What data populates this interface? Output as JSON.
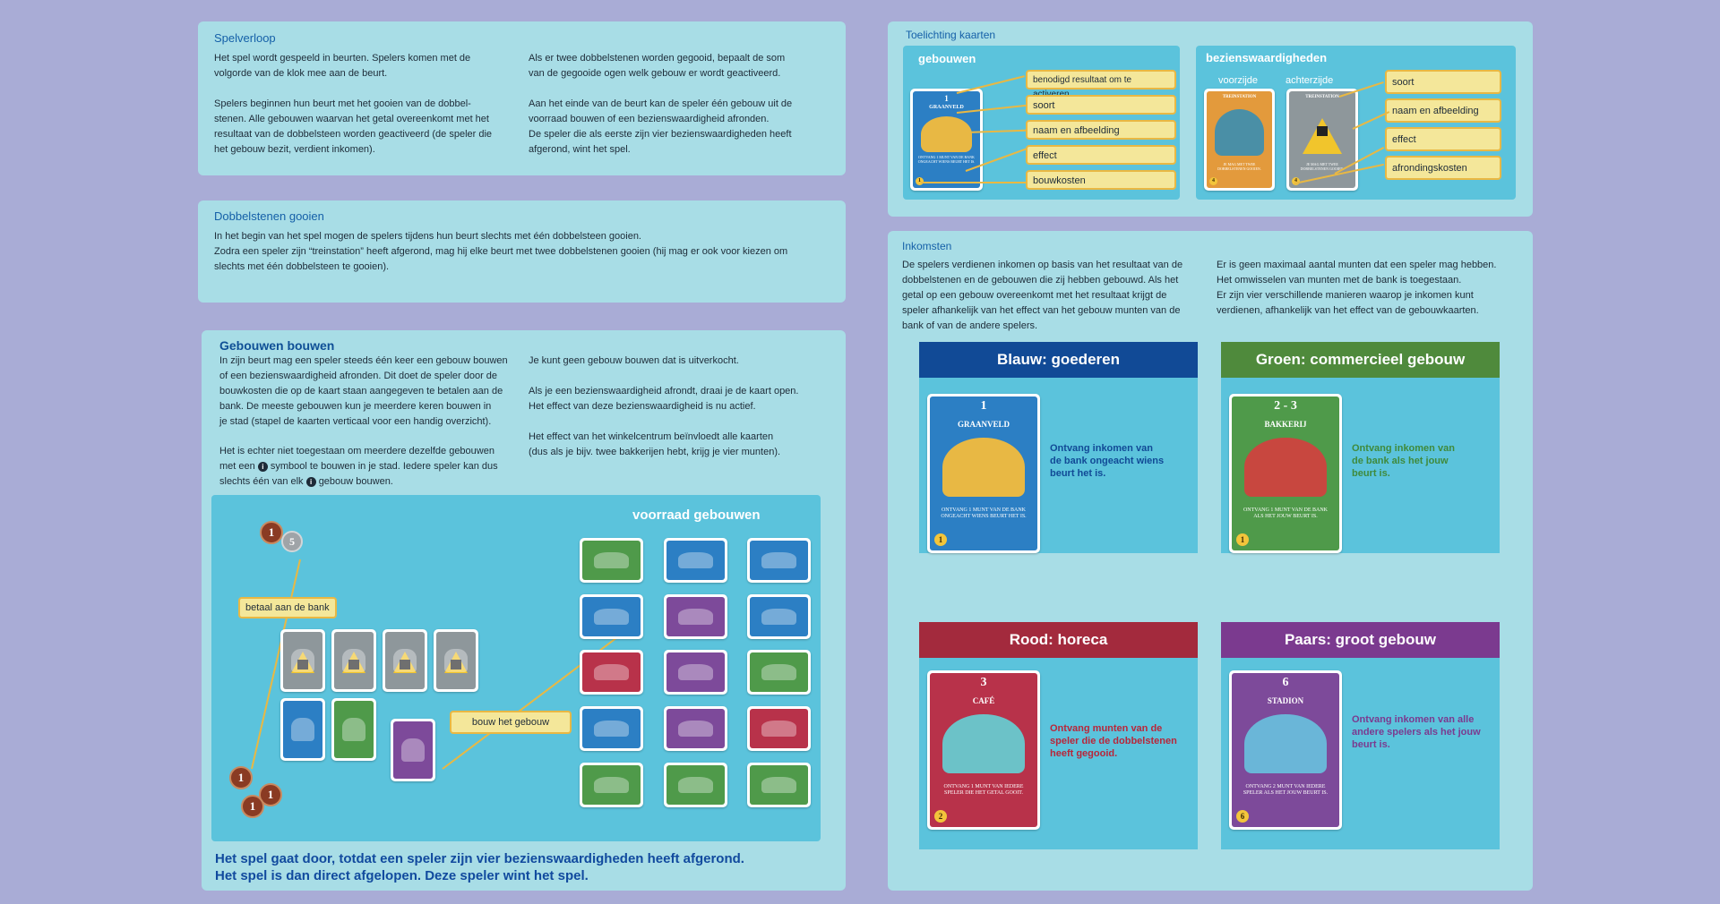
{
  "spelverloop": {
    "title": "Spelverloop",
    "col1": "Het spel wordt gespeeld in beurten. Spelers komen met de\nvolgorde van de klok mee aan de beurt.\n\nSpelers beginnen hun beurt met het gooien van de dobbel-\nstenen. Alle gebouwen waarvan het getal overeenkomt met het\nresultaat van de dobbelsteen worden geactiveerd (de speler die\nhet gebouw bezit, verdient inkomen).",
    "col2": "Als er twee dobbelstenen worden gegooid, bepaalt de som\nvan de gegooide ogen welk gebouw er wordt geactiveerd.\n\nAan het einde van de beurt kan de speler één gebouw uit de\nvoorraad bouwen of een bezienswaardigheid afronden.\nDe speler die als eerste zijn vier bezienswaardigheden heeft\nafgerond, wint het spel."
  },
  "dobbelstenen": {
    "title": "Dobbelstenen gooien",
    "text": "In het begin van het spel mogen de spelers tijdens hun beurt slechts met één dobbelsteen gooien.\nZodra een speler zijn “treinstation” heeft afgerond, mag hij elke beurt met twee dobbelstenen gooien (hij mag er ook voor kiezen om\nslechts met één dobbelsteen te gooien)."
  },
  "gebouwen_bouwen": {
    "title": "Gebouwen bouwen",
    "col1": "In zijn beurt mag een speler steeds één keer een gebouw bouwen\nof een bezienswaardigheid afronden. Dit doet de speler door de\nbouwkosten die op de kaart staan aangegeven te betalen aan de\nbank. De meeste gebouwen kun je meerdere keren bouwen in\nje stad (stapel de kaarten verticaal voor een handig overzicht).",
    "col1b_pre": "Het is echter niet toegestaan om meerdere dezelfde gebouwen",
    "col1b_line2a": "met een",
    "col1b_line2b": "symbool te bouwen in je stad. Iedere speler kan dus",
    "col1b_line3a": "slechts één van elk",
    "col1b_line3b": "gebouw bouwen.",
    "col2": "Je kunt geen gebouw bouwen dat is uitverkocht.\n\nAls je een bezienswaardigheid afrondt, draai je de kaart open.\nHet effect van deze bezienswaardigheid is nu actief.\n\nHet effect van het winkelcentrum beïnvloedt alle kaarten\n(dus als je bijv. twee bakkerijen hebt, krijg je vier munten).",
    "stock_title": "voorraad gebouwen",
    "pay_label": "betaal aan de bank",
    "build_label": "bouw het gebouw",
    "coins_top": [
      "1",
      "5"
    ],
    "coins_bottom": [
      "1",
      "1",
      "1"
    ],
    "footer1": "Het spel gaat door, totdat een speler zijn vier bezienswaardigheden heeft afgerond.",
    "footer2": "Het spel is dan direct afgelopen. Deze speler wint het spel."
  },
  "toelichting": {
    "title": "Toelichting kaarten",
    "buildings_title": "gebouwen",
    "sights_title": "bezienswaardigheden",
    "front": "voorzijde",
    "back": "achterzijde",
    "building_labels": [
      "benodigd resultaat om te activeren",
      "soort",
      "naam en afbeelding",
      "effect",
      "bouwkosten"
    ],
    "sight_labels": [
      "soort",
      "naam en afbeelding",
      "effect",
      "afrondingskosten"
    ],
    "card_graanveld": {
      "num": "1",
      "name": "GRAANVELD",
      "text": "ONTVANG 1 MUNT VAN DE BANK ONGEACHT WIENS BEURT HET IS.",
      "cost": "1"
    },
    "card_station_front": {
      "name": "TREINSTATION",
      "text": "JE MAG MET TWEE DOBBELSTENEN GOOIEN.",
      "cost": "4"
    },
    "card_station_back": {
      "name": "TREINSTATION",
      "text": "JE MAG MET TWEE DOBBELSTENEN GOOIEN.",
      "cost": "4"
    }
  },
  "inkomsten": {
    "title": "Inkomsten",
    "col1": "De spelers verdienen inkomen op basis van het resultaat van de\ndobbelstenen en de gebouwen die zij hebben gebouwd. Als het\ngetal op een gebouw overeenkomt met het resultaat krijgt de\nspeler afhankelijk van het effect van het gebouw munten van de\nbank of van de andere spelers.",
    "col2": "Er is geen maximaal aantal munten dat een speler mag hebben.\nHet omwisselen van munten met de bank is toegestaan.\nEr zijn vier verschillende manieren waarop je inkomen kunt\nverdienen, afhankelijk van het effect van de gebouwkaarten.",
    "categories": [
      {
        "head": "Blauw: goederen",
        "desc": "Ontvang inkomen van\nde bank ongeacht wiens\nbeurt het is.",
        "card_num": "1",
        "card_name": "GRAANVELD",
        "card_text": "ONTVANG 1 MUNT VAN DE BANK ONGEACHT WIENS BEURT HET IS.",
        "cost": "1",
        "head_color": "#114a96",
        "desc_color": "#114a96",
        "card_color": "#2c7fc4",
        "art_color": "#e8b844"
      },
      {
        "head": "Groen: commercieel gebouw",
        "desc": "Ontvang inkomen van\nde bank als het jouw\nbeurt is.",
        "card_num": "2 - 3",
        "card_name": "BAKKERIJ",
        "card_text": "ONTVANG 1 MUNT VAN DE BANK ALS HET JOUW BEURT IS.",
        "cost": "1",
        "head_color": "#4f8a3c",
        "desc_color": "#3f8a3c",
        "card_color": "#4f9a4a",
        "art_color": "#c8473f"
      },
      {
        "head": "Rood: horeca",
        "desc": "Ontvang munten van de\nspeler die de dobbelstenen\nheeft gegooid.",
        "card_num": "3",
        "card_name": "CAFÉ",
        "card_text": "ONTVANG 1 MUNT VAN IEDERE SPELER DIE HET GETAL GOOIT.",
        "cost": "2",
        "head_color": "#a32a3d",
        "desc_color": "#b8263a",
        "card_color": "#b8324a",
        "art_color": "#6cc2c8"
      },
      {
        "head": "Paars: groot gebouw",
        "desc": "Ontvang inkomen van alle\nandere spelers als het jouw\nbeurt is.",
        "card_num": "6",
        "card_name": "STADION",
        "card_text": "ONTVANG 2 MUNT VAN IEDERE SPELER ALS HET JOUW BEURT IS.",
        "cost": "6",
        "head_color": "#7b3a8f",
        "desc_color": "#7b3a8f",
        "card_color": "#7d4a9a",
        "art_color": "#6ab6d8"
      }
    ]
  },
  "colors": {
    "background": "#a9acd6",
    "panel": "#a8dde6",
    "inner": "#5bc3dc",
    "label_fill": "#f4e79a",
    "label_border": "#e9b843",
    "title_blue": "#1560a8"
  }
}
